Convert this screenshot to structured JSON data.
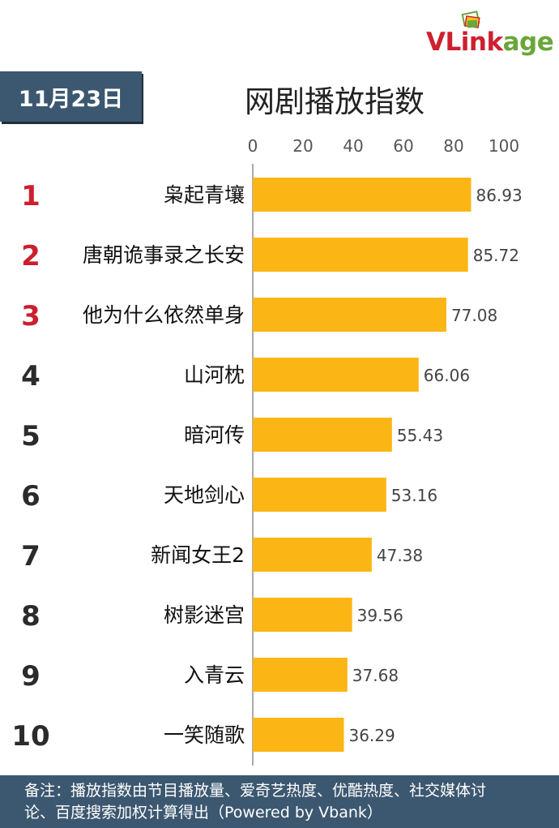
{
  "logo": {
    "brand_v": "V",
    "brand_link": "Link",
    "brand_age": "age"
  },
  "colors": {
    "bar": "#fbb616",
    "rank_top": "#cc1f2e",
    "rank_other": "#2b2b2b",
    "badge": "#3c5870"
  },
  "header": {
    "date": "11月23日",
    "title": "网剧播放指数"
  },
  "chart_data": {
    "type": "bar",
    "orientation": "horizontal",
    "categories": [
      "枭起青壤",
      "唐朝诡事录之长安",
      "他为什么依然单身",
      "山河枕",
      "暗河传",
      "天地剑心",
      "新闻女王2",
      "树影迷宫",
      "入青云",
      "一笑随歌"
    ],
    "ranks": [
      "1",
      "2",
      "3",
      "4",
      "5",
      "6",
      "7",
      "8",
      "9",
      "10"
    ],
    "values": [
      86.93,
      85.72,
      77.08,
      66.06,
      55.43,
      53.16,
      47.38,
      39.56,
      37.68,
      36.29
    ],
    "value_labels": [
      "86.93",
      "85.72",
      "77.08",
      "66.06",
      "55.43",
      "53.16",
      "47.38",
      "39.56",
      "37.68",
      "36.29"
    ],
    "xlim": [
      0,
      100
    ],
    "xticks": [
      "0",
      "20",
      "40",
      "60",
      "80",
      "100"
    ],
    "tick_values": [
      0,
      20,
      40,
      60,
      80,
      100
    ],
    "axis_position": "top",
    "grid": false,
    "legend": "none"
  },
  "footer": {
    "line1": "备注：播放指数由节目播放量、爱奇艺热度、优酷热度、社交媒体讨",
    "line2": "论、百度搜索加权计算得出（Powered by Vbank）"
  }
}
